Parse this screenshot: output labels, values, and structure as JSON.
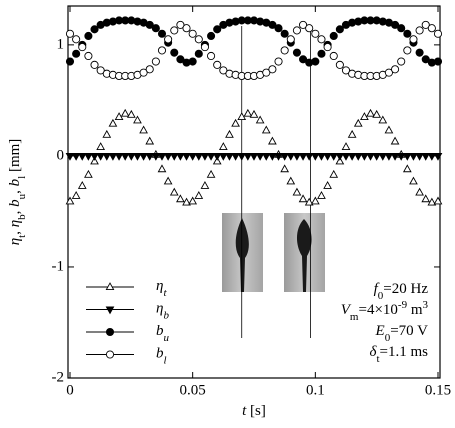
{
  "chart_data": {
    "type": "scatter",
    "xlabel": [
      {
        "text": "t",
        "italic": true
      },
      {
        "text": " [s]"
      }
    ],
    "ylabel": [
      {
        "text": "η",
        "italic": true
      },
      {
        "text": "t",
        "sub": true
      },
      {
        "text": ", "
      },
      {
        "text": "η",
        "italic": true
      },
      {
        "text": "b",
        "sub": true
      },
      {
        "text": ", "
      },
      {
        "text": "b",
        "italic": true
      },
      {
        "text": "u",
        "sub": true
      },
      {
        "text": ", "
      },
      {
        "text": "b",
        "italic": true
      },
      {
        "text": "l",
        "sub": true
      },
      {
        "text": " [mm]"
      }
    ],
    "xlim": [
      0,
      0.15
    ],
    "ylim": [
      -2,
      1.35
    ],
    "xticks": [
      0,
      0.05,
      0.1,
      0.15
    ],
    "yticks": [
      -2,
      -1,
      0,
      1
    ],
    "vlines": [
      0.07,
      0.098
    ],
    "x": [
      0,
      0.0025,
      0.005,
      0.0075,
      0.01,
      0.0125,
      0.015,
      0.0175,
      0.02,
      0.0225,
      0.025,
      0.0275,
      0.03,
      0.0325,
      0.035,
      0.0375,
      0.04,
      0.0425,
      0.045,
      0.0475,
      0.05,
      0.0525,
      0.055,
      0.0575,
      0.06,
      0.0625,
      0.065,
      0.0675,
      0.07,
      0.0725,
      0.075,
      0.0775,
      0.08,
      0.0825,
      0.085,
      0.0875,
      0.09,
      0.0925,
      0.095,
      0.0975,
      0.1,
      0.1025,
      0.105,
      0.1075,
      0.11,
      0.1125,
      0.115,
      0.1175,
      0.12,
      0.1225,
      0.125,
      0.1275,
      0.13,
      0.1325,
      0.135,
      0.1375,
      0.14,
      0.1425,
      0.145,
      0.1475,
      0.15
    ],
    "series": [
      {
        "name": "ηt",
        "color": "#000000",
        "marker": "triangle-open",
        "values": [
          -0.41,
          -0.36,
          -0.27,
          -0.17,
          -0.05,
          0.08,
          0.19,
          0.29,
          0.35,
          0.38,
          0.37,
          0.32,
          0.23,
          0.13,
          0.01,
          -0.12,
          -0.23,
          -0.33,
          -0.39,
          -0.42,
          -0.41,
          -0.36,
          -0.27,
          -0.17,
          -0.05,
          0.08,
          0.19,
          0.29,
          0.35,
          0.38,
          0.37,
          0.32,
          0.23,
          0.13,
          0.01,
          -0.12,
          -0.23,
          -0.33,
          -0.39,
          -0.42,
          -0.41,
          -0.36,
          -0.27,
          -0.17,
          -0.05,
          0.08,
          0.19,
          0.29,
          0.35,
          0.38,
          0.37,
          0.32,
          0.23,
          0.13,
          0.01,
          -0.12,
          -0.23,
          -0.33,
          -0.39,
          -0.42,
          -0.41
        ]
      },
      {
        "name": "ηb",
        "color": "#000000",
        "marker": "triangle-down-filled",
        "values": [
          0,
          0,
          0,
          0,
          0,
          0,
          0,
          0,
          0,
          0,
          0,
          0,
          0,
          0,
          0,
          0,
          0,
          0,
          0,
          0,
          0,
          0,
          0,
          0,
          0,
          0,
          0,
          0,
          0,
          0,
          0,
          0,
          0,
          0,
          0,
          0,
          0,
          0,
          0,
          0,
          0,
          0,
          0,
          0,
          0,
          0,
          0,
          0,
          0,
          0,
          0,
          0,
          0,
          0,
          0,
          0,
          0,
          0,
          0,
          0,
          0
        ]
      },
      {
        "name": "bu",
        "color": "#000000",
        "marker": "circle-filled",
        "values": [
          0.85,
          0.92,
          1.0,
          1.08,
          1.14,
          1.18,
          1.2,
          1.21,
          1.22,
          1.22,
          1.22,
          1.21,
          1.2,
          1.18,
          1.15,
          1.1,
          1.02,
          0.93,
          0.87,
          0.84,
          0.85,
          0.92,
          1.0,
          1.08,
          1.14,
          1.18,
          1.2,
          1.21,
          1.22,
          1.22,
          1.22,
          1.21,
          1.2,
          1.18,
          1.15,
          1.1,
          1.02,
          0.93,
          0.87,
          0.84,
          0.85,
          0.92,
          1.0,
          1.08,
          1.14,
          1.18,
          1.2,
          1.21,
          1.22,
          1.22,
          1.22,
          1.21,
          1.2,
          1.18,
          1.15,
          1.1,
          1.02,
          0.93,
          0.87,
          0.84,
          0.85
        ]
      },
      {
        "name": "bl",
        "color": "#000000",
        "marker": "circle-open",
        "values": [
          1.1,
          1.05,
          0.98,
          0.9,
          0.82,
          0.77,
          0.74,
          0.73,
          0.72,
          0.72,
          0.72,
          0.73,
          0.75,
          0.78,
          0.85,
          0.95,
          1.05,
          1.13,
          1.18,
          1.15,
          1.1,
          1.05,
          0.98,
          0.9,
          0.82,
          0.77,
          0.74,
          0.73,
          0.72,
          0.72,
          0.72,
          0.73,
          0.75,
          0.78,
          0.85,
          0.95,
          1.05,
          1.13,
          1.18,
          1.15,
          1.1,
          1.05,
          0.98,
          0.9,
          0.82,
          0.77,
          0.74,
          0.73,
          0.72,
          0.72,
          0.72,
          0.73,
          0.75,
          0.78,
          0.85,
          0.95,
          1.05,
          1.13,
          1.18,
          1.15,
          1.1
        ]
      }
    ],
    "annotations": [
      [
        {
          "text": "f",
          "italic": true
        },
        {
          "text": "0",
          "sub": true
        },
        {
          "text": "=20 Hz"
        }
      ],
      [
        {
          "text": "V",
          "italic": true
        },
        {
          "text": "m",
          "sub": true
        },
        {
          "text": "=4×10"
        },
        {
          "text": "-9",
          "sup": true
        },
        {
          "text": " m"
        },
        {
          "text": "3",
          "sup": true
        }
      ],
      [
        {
          "text": "E",
          "italic": true
        },
        {
          "text": "0",
          "sub": true
        },
        {
          "text": "=70 V"
        }
      ],
      [
        {
          "text": "δ",
          "italic": true
        },
        {
          "text": "t",
          "sub": true
        },
        {
          "text": "=1.1 ms"
        }
      ]
    ]
  }
}
